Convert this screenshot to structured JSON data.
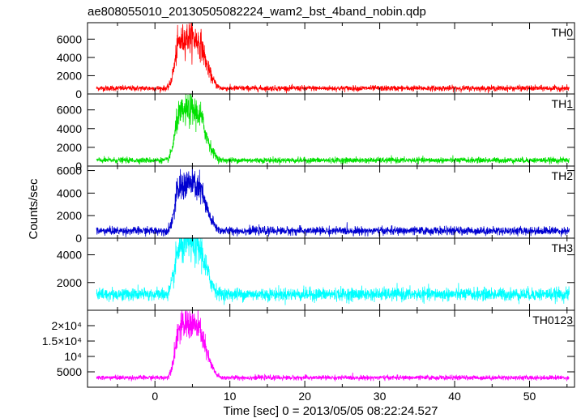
{
  "chart_data": {
    "type": "line",
    "title": "ae808055010_20130505082224_wam2_bst_4band_nobin.qdp",
    "xlabel": "Time [sec] 0 = 2013/05/05 08:22:24.527",
    "ylabel": "Counts/sec",
    "xlim": [
      -9,
      56
    ],
    "x_ticks": [
      {
        "value": 0,
        "label": "0"
      },
      {
        "value": 10,
        "label": "10"
      },
      {
        "value": 20,
        "label": "20"
      },
      {
        "value": 30,
        "label": "30"
      },
      {
        "value": 40,
        "label": "40"
      },
      {
        "value": 50,
        "label": "50"
      }
    ],
    "burst": {
      "start": 1.5,
      "peak_start": 3.0,
      "peak_end": 6.2,
      "end": 9.0
    },
    "grid": false,
    "panels": [
      {
        "name": "TH0",
        "color": "#ff0000",
        "ylim": [
          0,
          7800
        ],
        "baseline": 620,
        "noise": 150,
        "peak": 5600,
        "yticks": [
          {
            "value": 0,
            "label": "0"
          },
          {
            "value": 2000,
            "label": "2000"
          },
          {
            "value": 4000,
            "label": "4000"
          },
          {
            "value": 6000,
            "label": "6000"
          }
        ]
      },
      {
        "name": "TH1",
        "color": "#00e000",
        "ylim": [
          0,
          7700
        ],
        "baseline": 620,
        "noise": 150,
        "peak": 5400,
        "yticks": [
          {
            "value": 0,
            "label": "0"
          },
          {
            "value": 2000,
            "label": "2000"
          },
          {
            "value": 4000,
            "label": "4000"
          },
          {
            "value": 6000,
            "label": "6000"
          }
        ]
      },
      {
        "name": "TH2",
        "color": "#0000d0",
        "ylim": [
          0,
          6400
        ],
        "baseline": 650,
        "noise": 180,
        "peak": 4200,
        "yticks": [
          {
            "value": 0,
            "label": "0"
          },
          {
            "value": 2000,
            "label": "2000"
          },
          {
            "value": 4000,
            "label": "4000"
          },
          {
            "value": 6000,
            "label": "6000"
          }
        ]
      },
      {
        "name": "TH3",
        "color": "#00ffff",
        "ylim": [
          0,
          5200
        ],
        "baseline": 1150,
        "noise": 230,
        "peak": 3700,
        "yticks": [
          {
            "value": 2000,
            "label": "2000"
          },
          {
            "value": 4000,
            "label": "4000"
          }
        ]
      },
      {
        "name": "TH0123",
        "color": "#ff00ff",
        "ylim": [
          0,
          25000
        ],
        "baseline": 3100,
        "noise": 380,
        "peak": 17500,
        "yticks": [
          {
            "value": 5000,
            "label": "5000"
          },
          {
            "value": 10000,
            "label": "10⁴",
            "mantissa": ""
          },
          {
            "value": 15000,
            "label": "1.5×10⁴",
            "mantissa": ""
          },
          {
            "value": 20000,
            "label": "2×10⁴",
            "mantissa": ""
          }
        ]
      }
    ]
  }
}
